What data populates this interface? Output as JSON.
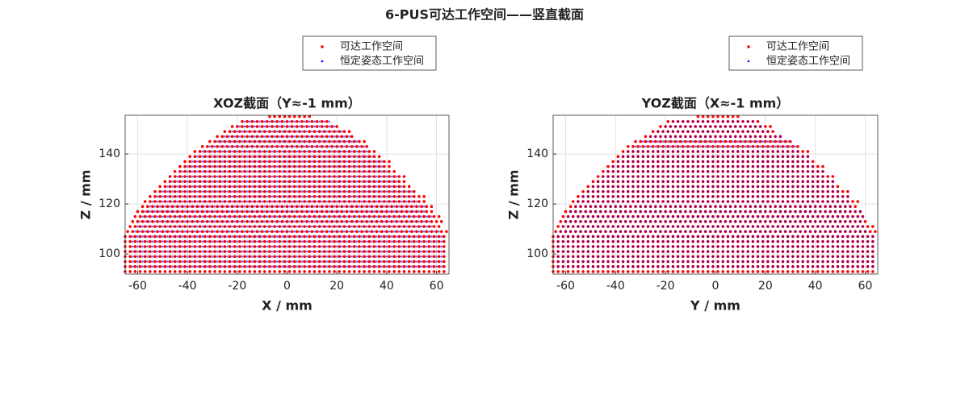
{
  "title": "6-PUS可达工作空间——竖直截面",
  "chart_data": [
    {
      "type": "scatter",
      "title": "XOZ截面（Y≈-1 mm）",
      "xlabel": "X / mm",
      "ylabel": "Z / mm",
      "xlim": [
        -65,
        65
      ],
      "ylim": [
        92,
        155.5
      ],
      "xticks": [
        -60,
        -40,
        -20,
        0,
        20,
        40,
        60
      ],
      "yticks": [
        100,
        120,
        140
      ],
      "grid": true,
      "legend": "north-outside",
      "series": [
        {
          "name": "可达工作空间",
          "color": "#ff0000",
          "y": [
            93,
            95,
            97,
            99,
            101,
            103,
            105,
            107,
            109,
            111,
            113,
            115,
            117,
            119,
            121,
            123,
            125,
            127,
            129,
            131,
            133,
            135,
            137,
            139,
            141,
            143,
            145,
            147,
            149,
            151,
            153,
            155
          ],
          "x_min": [
            -65,
            -65,
            -65,
            -65,
            -65,
            -65,
            -65,
            -65,
            -64,
            -63,
            -62,
            -61,
            -60,
            -58,
            -57,
            -55,
            -53,
            -51,
            -49,
            -47,
            -45,
            -43,
            -41,
            -39,
            -37,
            -34,
            -31,
            -28,
            -25,
            -22,
            -18,
            -7
          ],
          "x_max": [
            65,
            65,
            65,
            65,
            65,
            65,
            65,
            65,
            64,
            63,
            62,
            61,
            60,
            58,
            57,
            55,
            53,
            51,
            49,
            47,
            45,
            43,
            41,
            39,
            37,
            34,
            31,
            28,
            25,
            22,
            18,
            9
          ]
        },
        {
          "name": "恒定姿态工作空间",
          "color": "#0000ff",
          "y": [
            95,
            97,
            99,
            101,
            103,
            105,
            107,
            109,
            111,
            113,
            115,
            117,
            119,
            121,
            123,
            125,
            127,
            129,
            131,
            133,
            135,
            137,
            139,
            141,
            143,
            145,
            147,
            149,
            151,
            153
          ],
          "x_min": [
            -62,
            -62,
            -62,
            -62,
            -62,
            -62,
            -62,
            -61,
            -60,
            -59,
            -58,
            -57,
            -55,
            -54,
            -52,
            -50,
            -48,
            -46,
            -44,
            -42,
            -40,
            -38,
            -36,
            -34,
            -31,
            -28,
            -25,
            -22,
            -19,
            -17
          ],
          "x_max": [
            62,
            62,
            62,
            62,
            62,
            62,
            62,
            61,
            60,
            59,
            58,
            57,
            55,
            54,
            52,
            50,
            48,
            46,
            44,
            42,
            40,
            38,
            36,
            34,
            31,
            28,
            25,
            22,
            19,
            17
          ]
        }
      ]
    },
    {
      "type": "scatter",
      "title": "YOZ截面（X≈-1 mm）",
      "xlabel": "Y / mm",
      "ylabel": "Z / mm",
      "xlim": [
        -65,
        65
      ],
      "ylim": [
        92,
        155.5
      ],
      "xticks": [
        -60,
        -40,
        -20,
        0,
        20,
        40,
        60
      ],
      "yticks": [
        100,
        120,
        140
      ],
      "grid": true,
      "legend": "north-outside",
      "series": [
        {
          "name": "可达工作空间",
          "color": "#ff0000",
          "y": [
            93,
            95,
            97,
            99,
            101,
            103,
            105,
            107,
            109,
            111,
            113,
            115,
            117,
            119,
            121,
            123,
            125,
            127,
            129,
            131,
            133,
            135,
            137,
            139,
            141,
            143,
            145,
            147,
            149,
            151,
            153,
            155
          ],
          "x_min": [
            -65,
            -65,
            -65,
            -65,
            -65,
            -65,
            -65,
            -65,
            -64,
            -63,
            -62,
            -61,
            -60,
            -58,
            -57,
            -55,
            -53,
            -51,
            -49,
            -47,
            -45,
            -43,
            -41,
            -39,
            -37,
            -35,
            -32,
            -28,
            -25,
            -22,
            -19,
            -7
          ],
          "x_max": [
            65,
            65,
            65,
            65,
            65,
            65,
            65,
            65,
            64,
            63,
            62,
            61,
            60,
            58,
            57,
            55,
            53,
            51,
            49,
            47,
            45,
            43,
            41,
            39,
            37,
            34,
            31,
            28,
            25,
            22,
            19,
            9
          ]
        },
        {
          "name": "恒定姿态工作空间",
          "color": "#0000ff",
          "y": [
            95,
            97,
            99,
            101,
            103,
            105,
            107,
            109,
            111,
            113,
            115,
            117,
            119,
            121,
            123,
            125,
            127,
            129,
            131,
            133,
            135,
            137,
            139,
            141,
            143,
            145,
            147,
            149,
            151,
            153
          ],
          "x_min": [
            -63,
            -63,
            -63,
            -63,
            -63,
            -63,
            -63,
            -62,
            -61,
            -60,
            -59,
            -58,
            -56,
            -55,
            -53,
            -51,
            -49,
            -47,
            -45,
            -43,
            -41,
            -39,
            -37,
            -35,
            -32,
            -29,
            -26,
            -23,
            -20,
            -17
          ],
          "x_max": [
            63,
            63,
            63,
            63,
            63,
            63,
            63,
            62,
            61,
            60,
            59,
            58,
            56,
            55,
            53,
            51,
            49,
            47,
            45,
            43,
            41,
            39,
            37,
            35,
            32,
            29,
            26,
            23,
            20,
            17
          ]
        }
      ]
    }
  ]
}
